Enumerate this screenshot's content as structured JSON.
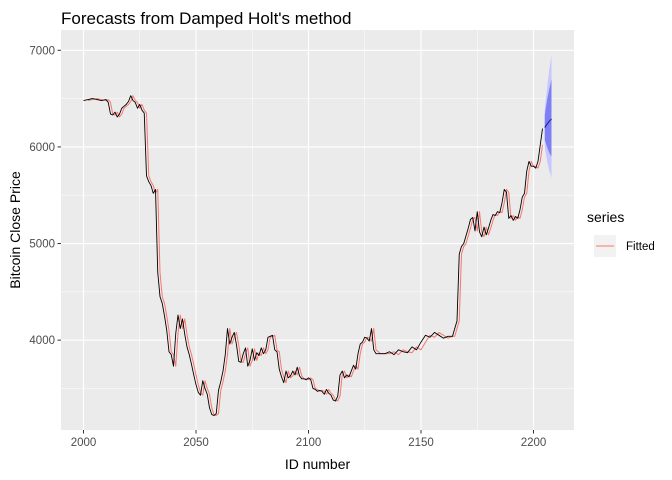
{
  "chart_data": {
    "type": "line",
    "title": "Forecasts from Damped Holt's method",
    "xlabel": "ID number",
    "ylabel": "Bitcoin Close Price",
    "xlim": [
      1990,
      2218
    ],
    "ylim": [
      3070,
      7210
    ],
    "x_ticks": [
      2000,
      2050,
      2100,
      2150,
      2200
    ],
    "y_ticks": [
      4000,
      5000,
      6000,
      7000
    ],
    "x_minor": [
      2025,
      2075,
      2125,
      2175
    ],
    "y_minor": [
      3500,
      4500,
      5500,
      6500
    ],
    "grid": true,
    "legend": {
      "title": "series",
      "position": "right",
      "entries": [
        "Fitted"
      ]
    },
    "colors": {
      "panel": "#ebebeb",
      "grid": "#ffffff",
      "actual": "#000000",
      "fitted": "#f8766d",
      "band95": "#c7c7ff",
      "band80": "#7f7ff5",
      "forecast": "#1a1a8c"
    },
    "actual": {
      "x": [
        2000,
        2002,
        2004,
        2006,
        2008,
        2010,
        2011,
        2012,
        2013,
        2014,
        2015,
        2016,
        2017,
        2018,
        2019,
        2020,
        2021,
        2022,
        2023,
        2024,
        2025,
        2026,
        2027,
        2028,
        2029,
        2030,
        2031,
        2032,
        2033,
        2034,
        2035,
        2036,
        2037,
        2038,
        2039,
        2040,
        2041,
        2042,
        2043,
        2044,
        2045,
        2046,
        2047,
        2048,
        2049,
        2050,
        2051,
        2052,
        2053,
        2054,
        2055,
        2056,
        2057,
        2058,
        2059,
        2060,
        2061,
        2062,
        2063,
        2064,
        2065,
        2066,
        2067,
        2068,
        2069,
        2070,
        2071,
        2072,
        2073,
        2074,
        2075,
        2076,
        2077,
        2078,
        2079,
        2080,
        2081,
        2082,
        2083,
        2084,
        2085,
        2086,
        2087,
        2088,
        2089,
        2090,
        2091,
        2092,
        2093,
        2094,
        2095,
        2096,
        2097,
        2098,
        2099,
        2100,
        2101,
        2102,
        2103,
        2104,
        2105,
        2106,
        2107,
        2108,
        2109,
        2110,
        2111,
        2112,
        2113,
        2114,
        2115,
        2116,
        2117,
        2118,
        2119,
        2120,
        2121,
        2122,
        2123,
        2124,
        2125,
        2126,
        2127,
        2128,
        2129,
        2130,
        2132,
        2134,
        2136,
        2138,
        2140,
        2142,
        2144,
        2146,
        2148,
        2150,
        2152,
        2154,
        2156,
        2158,
        2160,
        2162,
        2164,
        2165,
        2166,
        2167,
        2168,
        2169,
        2170,
        2171,
        2172,
        2173,
        2174,
        2175,
        2176,
        2177,
        2178,
        2179,
        2180,
        2181,
        2182,
        2183,
        2184,
        2185,
        2186,
        2187,
        2188,
        2189,
        2190,
        2191,
        2192,
        2193,
        2194,
        2195,
        2196,
        2197,
        2198,
        2199,
        2200,
        2201,
        2202,
        2203,
        2204
      ],
      "y": [
        6480,
        6490,
        6500,
        6490,
        6480,
        6490,
        6460,
        6340,
        6330,
        6360,
        6310,
        6340,
        6400,
        6420,
        6440,
        6470,
        6530,
        6480,
        6460,
        6400,
        6440,
        6380,
        6350,
        5700,
        5640,
        5600,
        5520,
        5560,
        4700,
        4450,
        4380,
        4250,
        4100,
        3880,
        3850,
        3730,
        4070,
        4260,
        4120,
        4220,
        4060,
        3930,
        3850,
        3750,
        3640,
        3540,
        3460,
        3430,
        3580,
        3500,
        3440,
        3300,
        3230,
        3220,
        3240,
        3480,
        3570,
        3680,
        3850,
        4120,
        3960,
        4030,
        4080,
        3950,
        3780,
        3770,
        3860,
        3920,
        3730,
        3790,
        3910,
        3790,
        3870,
        3840,
        3920,
        3860,
        3900,
        4030,
        4040,
        4050,
        3900,
        3880,
        3700,
        3620,
        3560,
        3680,
        3610,
        3630,
        3680,
        3640,
        3720,
        3630,
        3600,
        3600,
        3590,
        3610,
        3590,
        3500,
        3490,
        3470,
        3480,
        3470,
        3440,
        3490,
        3450,
        3430,
        3380,
        3370,
        3420,
        3640,
        3680,
        3610,
        3640,
        3620,
        3680,
        3740,
        3700,
        3860,
        3960,
        3980,
        4030,
        4020,
        3990,
        4120,
        3900,
        3860,
        3860,
        3860,
        3880,
        3850,
        3900,
        3880,
        3870,
        3930,
        3900,
        3980,
        4050,
        4030,
        4080,
        4050,
        4020,
        4040,
        4040,
        4120,
        4200,
        4890,
        4970,
        5000,
        5080,
        5160,
        5250,
        5270,
        5130,
        5330,
        5120,
        5070,
        5170,
        5090,
        5160,
        5240,
        5300,
        5290,
        5330,
        5320,
        5420,
        5560,
        5530,
        5260,
        5290,
        5240,
        5280,
        5260,
        5350,
        5480,
        5520,
        5750,
        5850,
        5800,
        5800,
        5780,
        5850,
        6020,
        6190
      ],
      "fitted_lag": 1
    },
    "forecast": {
      "x": [
        2205,
        2206,
        2207,
        2208
      ],
      "mean": [
        6200,
        6235,
        6265,
        6290
      ],
      "lo80": [
        6070,
        6000,
        5940,
        5900
      ],
      "hi80": [
        6330,
        6480,
        6600,
        6700
      ],
      "lo95": [
        6000,
        5860,
        5760,
        5680
      ],
      "hi95": [
        6400,
        6600,
        6800,
        6950
      ]
    }
  }
}
